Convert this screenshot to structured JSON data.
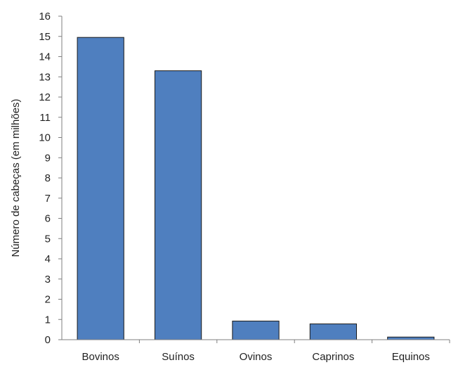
{
  "chart_data": {
    "type": "bar",
    "title": "",
    "xlabel": "",
    "ylabel": "Número de cabeças (em milhões)",
    "categories": [
      "Bovinos",
      "Suínos",
      "Ovinos",
      "Caprinos",
      "Equinos"
    ],
    "values": [
      14.95,
      13.3,
      0.92,
      0.78,
      0.13
    ],
    "ylim": [
      0,
      16
    ],
    "yticks": [
      0,
      1,
      2,
      3,
      4,
      5,
      6,
      7,
      8,
      9,
      10,
      11,
      12,
      13,
      14,
      15,
      16
    ],
    "grid": false,
    "legend": "none",
    "colors": {
      "bar_fill": "#4f7fbf",
      "bar_stroke": "#1a1a1a",
      "axis": "#7f7f7f",
      "text": "#222222"
    }
  }
}
